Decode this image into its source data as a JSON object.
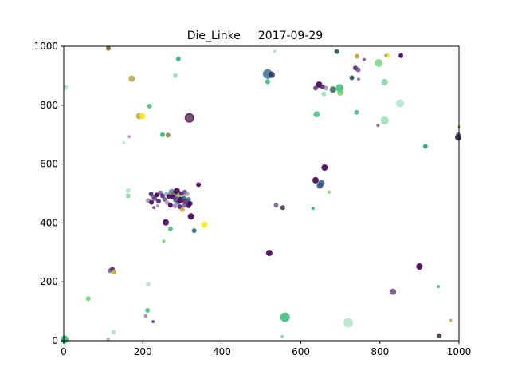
{
  "chart_data": {
    "type": "scatter",
    "title": "Die_Linke",
    "date": "2017-09-29",
    "xlabel": "",
    "ylabel": "",
    "xlim": [
      0,
      1000
    ],
    "ylim": [
      0,
      1000
    ],
    "x_ticks": [
      0,
      200,
      400,
      600,
      800,
      1000
    ],
    "y_ticks": [
      0,
      200,
      400,
      600,
      800,
      1000
    ],
    "grid": false,
    "colormap": "viridis",
    "points": [
      {
        "x": 113,
        "y": 993,
        "s": 3,
        "c": "#7a6a2a",
        "a": 0.9
      },
      {
        "x": 290,
        "y": 957,
        "s": 3,
        "c": "#2db27d",
        "a": 0.9
      },
      {
        "x": 533,
        "y": 983,
        "s": 2,
        "c": "#9fd9c0",
        "a": 0.8
      },
      {
        "x": 172,
        "y": 890,
        "s": 4,
        "c": "#a8a832",
        "a": 0.8
      },
      {
        "x": 282,
        "y": 900,
        "s": 3,
        "c": "#73d0a5",
        "a": 0.7
      },
      {
        "x": 5,
        "y": 860,
        "s": 3,
        "c": "#9fd9c0",
        "a": 0.7
      },
      {
        "x": 217,
        "y": 797,
        "s": 3,
        "c": "#35b779",
        "a": 0.8
      },
      {
        "x": 191,
        "y": 763,
        "s": 4,
        "c": "#a8a832",
        "a": 0.8
      },
      {
        "x": 199,
        "y": 763,
        "s": 4,
        "c": "#fde725",
        "a": 0.9
      },
      {
        "x": 318,
        "y": 757,
        "s": 6,
        "c": "#440154",
        "a": 0.8
      },
      {
        "x": 318,
        "y": 757,
        "s": 4,
        "c": "#7b6b6b",
        "a": 0.7
      },
      {
        "x": 250,
        "y": 700,
        "s": 3,
        "c": "#35b779",
        "a": 0.9
      },
      {
        "x": 264,
        "y": 698,
        "s": 3,
        "c": "#6a7a2a",
        "a": 0.8
      },
      {
        "x": 166,
        "y": 693,
        "s": 2,
        "c": "#9b7bae",
        "a": 0.7
      },
      {
        "x": 152,
        "y": 673,
        "s": 2,
        "c": "#9fd9c0",
        "a": 0.7
      },
      {
        "x": 516,
        "y": 906,
        "s": 6,
        "c": "#31688e",
        "a": 0.8
      },
      {
        "x": 526,
        "y": 903,
        "s": 4,
        "c": "#1f2a5a",
        "a": 0.8
      },
      {
        "x": 516,
        "y": 880,
        "s": 3,
        "c": "#35b779",
        "a": 0.9
      },
      {
        "x": 691,
        "y": 982,
        "s": 3,
        "c": "#2a5a4a",
        "a": 0.9
      },
      {
        "x": 742,
        "y": 966,
        "s": 3,
        "c": "#c29a2a",
        "a": 0.8
      },
      {
        "x": 820,
        "y": 968,
        "s": 3,
        "c": "#fde725",
        "a": 0.9
      },
      {
        "x": 815,
        "y": 968,
        "s": 2,
        "c": "#8a8a8a",
        "a": 0.8
      },
      {
        "x": 853,
        "y": 968,
        "s": 3,
        "c": "#440154",
        "a": 0.9
      },
      {
        "x": 760,
        "y": 955,
        "s": 2,
        "c": "#6a4a8a",
        "a": 0.8
      },
      {
        "x": 797,
        "y": 943,
        "s": 5,
        "c": "#5ec962",
        "a": 0.7
      },
      {
        "x": 738,
        "y": 926,
        "s": 3,
        "c": "#46327e",
        "a": 0.9
      },
      {
        "x": 745,
        "y": 920,
        "s": 3,
        "c": "#6a3a7a",
        "a": 0.8
      },
      {
        "x": 729,
        "y": 893,
        "s": 3,
        "c": "#2a4a5a",
        "a": 0.9
      },
      {
        "x": 746,
        "y": 888,
        "s": 2,
        "c": "#7a5a9a",
        "a": 0.8
      },
      {
        "x": 812,
        "y": 878,
        "s": 4,
        "c": "#73d0a5",
        "a": 0.8
      },
      {
        "x": 646,
        "y": 870,
        "s": 4,
        "c": "#440154",
        "a": 0.9
      },
      {
        "x": 655,
        "y": 862,
        "s": 3,
        "c": "#482878",
        "a": 0.9
      },
      {
        "x": 637,
        "y": 858,
        "s": 3,
        "c": "#5a2a6a",
        "a": 0.8
      },
      {
        "x": 663,
        "y": 858,
        "s": 3,
        "c": "#8a7aa0",
        "a": 0.7
      },
      {
        "x": 681,
        "y": 853,
        "s": 4,
        "c": "#2a5a4a",
        "a": 0.8
      },
      {
        "x": 698,
        "y": 858,
        "s": 5,
        "c": "#35b779",
        "a": 0.8
      },
      {
        "x": 700,
        "y": 843,
        "s": 4,
        "c": "#5ec962",
        "a": 0.7
      },
      {
        "x": 658,
        "y": 838,
        "s": 3,
        "c": "#73d0a5",
        "a": 0.7
      },
      {
        "x": 851,
        "y": 806,
        "s": 5,
        "c": "#9fd9c0",
        "a": 0.7
      },
      {
        "x": 741,
        "y": 776,
        "s": 3,
        "c": "#35b779",
        "a": 0.8
      },
      {
        "x": 640,
        "y": 769,
        "s": 4,
        "c": "#35b779",
        "a": 0.8
      },
      {
        "x": 812,
        "y": 748,
        "s": 5,
        "c": "#7fd4a0",
        "a": 0.7
      },
      {
        "x": 795,
        "y": 731,
        "s": 2,
        "c": "#7a5a9a",
        "a": 0.8
      },
      {
        "x": 1000,
        "y": 726,
        "s": 2,
        "c": "#a8a832",
        "a": 0.8
      },
      {
        "x": 998,
        "y": 700,
        "s": 3,
        "c": "#6a4a8a",
        "a": 0.8
      },
      {
        "x": 998,
        "y": 690,
        "s": 4,
        "c": "#2a2a3a",
        "a": 0.9
      },
      {
        "x": 915,
        "y": 660,
        "s": 3,
        "c": "#20a486",
        "a": 0.9
      },
      {
        "x": 660,
        "y": 588,
        "s": 4,
        "c": "#440154",
        "a": 0.9
      },
      {
        "x": 637,
        "y": 545,
        "s": 4,
        "c": "#440154",
        "a": 0.9
      },
      {
        "x": 652,
        "y": 535,
        "s": 4,
        "c": "#31688e",
        "a": 0.9
      },
      {
        "x": 648,
        "y": 527,
        "s": 4,
        "c": "#3b528b",
        "a": 0.9
      },
      {
        "x": 671,
        "y": 505,
        "s": 2,
        "c": "#5ec962",
        "a": 0.8
      },
      {
        "x": 631,
        "y": 449,
        "s": 2,
        "c": "#35b779",
        "a": 0.9
      },
      {
        "x": 341,
        "y": 530,
        "s": 3,
        "c": "#440154",
        "a": 0.9
      },
      {
        "x": 163,
        "y": 510,
        "s": 3,
        "c": "#9fd9c0",
        "a": 0.7
      },
      {
        "x": 163,
        "y": 492,
        "s": 3,
        "c": "#73d0a5",
        "a": 0.8
      },
      {
        "x": 221,
        "y": 498,
        "s": 3,
        "c": "#482878",
        "a": 0.9
      },
      {
        "x": 228,
        "y": 488,
        "s": 3,
        "c": "#5a3a7a",
        "a": 0.8
      },
      {
        "x": 236,
        "y": 495,
        "s": 3,
        "c": "#440154",
        "a": 0.9
      },
      {
        "x": 245,
        "y": 502,
        "s": 3,
        "c": "#6a4a8a",
        "a": 0.8
      },
      {
        "x": 250,
        "y": 492,
        "s": 3,
        "c": "#46327e",
        "a": 0.9
      },
      {
        "x": 214,
        "y": 476,
        "s": 3,
        "c": "#7a6a9a",
        "a": 0.7
      },
      {
        "x": 222,
        "y": 470,
        "s": 3,
        "c": "#440154",
        "a": 0.9
      },
      {
        "x": 230,
        "y": 482,
        "s": 3,
        "c": "#6a3a7a",
        "a": 0.8
      },
      {
        "x": 240,
        "y": 474,
        "s": 3,
        "c": "#482878",
        "a": 0.9
      },
      {
        "x": 255,
        "y": 480,
        "s": 3,
        "c": "#5a4a8a",
        "a": 0.8
      },
      {
        "x": 260,
        "y": 498,
        "s": 3,
        "c": "#7a8aa0",
        "a": 0.7
      },
      {
        "x": 266,
        "y": 490,
        "s": 3,
        "c": "#440154",
        "a": 0.9
      },
      {
        "x": 273,
        "y": 505,
        "s": 4,
        "c": "#31688e",
        "a": 0.7
      },
      {
        "x": 280,
        "y": 500,
        "s": 4,
        "c": "#7a6a4a",
        "a": 0.8
      },
      {
        "x": 286,
        "y": 508,
        "s": 4,
        "c": "#440154",
        "a": 0.9
      },
      {
        "x": 292,
        "y": 495,
        "s": 3,
        "c": "#a8a832",
        "a": 0.8
      },
      {
        "x": 298,
        "y": 500,
        "s": 3,
        "c": "#482878",
        "a": 0.9
      },
      {
        "x": 306,
        "y": 505,
        "s": 3,
        "c": "#5a3a7a",
        "a": 0.8
      },
      {
        "x": 312,
        "y": 498,
        "s": 3,
        "c": "#8a8aa0",
        "a": 0.7
      },
      {
        "x": 276,
        "y": 488,
        "s": 3,
        "c": "#440154",
        "a": 0.9
      },
      {
        "x": 284,
        "y": 480,
        "s": 4,
        "c": "#3b528b",
        "a": 0.9
      },
      {
        "x": 290,
        "y": 470,
        "s": 3,
        "c": "#6a4a8a",
        "a": 0.8
      },
      {
        "x": 296,
        "y": 478,
        "s": 4,
        "c": "#440154",
        "a": 0.9
      },
      {
        "x": 304,
        "y": 484,
        "s": 3,
        "c": "#2a5a6a",
        "a": 0.8
      },
      {
        "x": 310,
        "y": 472,
        "s": 4,
        "c": "#5a2a6a",
        "a": 0.9
      },
      {
        "x": 316,
        "y": 480,
        "s": 3,
        "c": "#31688e",
        "a": 0.8
      },
      {
        "x": 320,
        "y": 466,
        "s": 3,
        "c": "#440154",
        "a": 0.9
      },
      {
        "x": 262,
        "y": 468,
        "s": 3,
        "c": "#9b7bae",
        "a": 0.7
      },
      {
        "x": 270,
        "y": 460,
        "s": 3,
        "c": "#440154",
        "a": 0.9
      },
      {
        "x": 282,
        "y": 458,
        "s": 3,
        "c": "#7a6a9a",
        "a": 0.7
      },
      {
        "x": 294,
        "y": 455,
        "s": 3,
        "c": "#482878",
        "a": 0.9
      },
      {
        "x": 305,
        "y": 460,
        "s": 3,
        "c": "#6a4a8a",
        "a": 0.8
      },
      {
        "x": 316,
        "y": 458,
        "s": 3,
        "c": "#440154",
        "a": 0.9
      },
      {
        "x": 238,
        "y": 458,
        "s": 2,
        "c": "#8a7aa0",
        "a": 0.7
      },
      {
        "x": 228,
        "y": 452,
        "s": 2,
        "c": "#6a3a7a",
        "a": 0.8
      },
      {
        "x": 300,
        "y": 445,
        "s": 3,
        "c": "#c29a2a",
        "a": 0.8
      },
      {
        "x": 322,
        "y": 422,
        "s": 4,
        "c": "#440154",
        "a": 0.9
      },
      {
        "x": 258,
        "y": 402,
        "s": 4,
        "c": "#440154",
        "a": 0.9
      },
      {
        "x": 356,
        "y": 394,
        "s": 4,
        "c": "#fde725",
        "a": 0.9
      },
      {
        "x": 270,
        "y": 380,
        "s": 3,
        "c": "#35b779",
        "a": 0.8
      },
      {
        "x": 330,
        "y": 374,
        "s": 3,
        "c": "#31688e",
        "a": 0.9
      },
      {
        "x": 253,
        "y": 338,
        "s": 2,
        "c": "#5ec962",
        "a": 0.8
      },
      {
        "x": 537,
        "y": 460,
        "s": 3,
        "c": "#6a4a8a",
        "a": 0.8
      },
      {
        "x": 554,
        "y": 452,
        "s": 3,
        "c": "#3a3a3a",
        "a": 0.9
      },
      {
        "x": 520,
        "y": 298,
        "s": 4,
        "c": "#440154",
        "a": 0.9
      },
      {
        "x": 117,
        "y": 238,
        "s": 3,
        "c": "#6a4a8a",
        "a": 0.8
      },
      {
        "x": 123,
        "y": 243,
        "s": 3,
        "c": "#482878",
        "a": 0.9
      },
      {
        "x": 127,
        "y": 233,
        "s": 3,
        "c": "#c29a2a",
        "a": 0.8
      },
      {
        "x": 62,
        "y": 143,
        "s": 3,
        "c": "#5ec962",
        "a": 0.8
      },
      {
        "x": 214,
        "y": 192,
        "s": 3,
        "c": "#9fd9c0",
        "a": 0.6
      },
      {
        "x": 212,
        "y": 103,
        "s": 3,
        "c": "#35b779",
        "a": 0.8
      },
      {
        "x": 207,
        "y": 84,
        "s": 2,
        "c": "#7a6a9a",
        "a": 0.7
      },
      {
        "x": 226,
        "y": 65,
        "s": 2,
        "c": "#482878",
        "a": 0.8
      },
      {
        "x": 126,
        "y": 29,
        "s": 3,
        "c": "#9fd9c0",
        "a": 0.7
      },
      {
        "x": 112,
        "y": 5,
        "s": 2,
        "c": "#8a8a8a",
        "a": 0.7
      },
      {
        "x": 2,
        "y": 4,
        "s": 5,
        "c": "#35b779",
        "a": 0.9
      },
      {
        "x": 900,
        "y": 252,
        "s": 4,
        "c": "#440154",
        "a": 0.9
      },
      {
        "x": 833,
        "y": 166,
        "s": 4,
        "c": "#6a3a7a",
        "a": 0.8
      },
      {
        "x": 948,
        "y": 184,
        "s": 2,
        "c": "#35b779",
        "a": 0.8
      },
      {
        "x": 560,
        "y": 80,
        "s": 6,
        "c": "#35b779",
        "a": 0.85
      },
      {
        "x": 720,
        "y": 61,
        "s": 6,
        "c": "#9fd9c0",
        "a": 0.7
      },
      {
        "x": 553,
        "y": 14,
        "s": 2,
        "c": "#73d0a5",
        "a": 0.8
      },
      {
        "x": 950,
        "y": 17,
        "s": 3,
        "c": "#4a3a3a",
        "a": 0.9
      },
      {
        "x": 979,
        "y": 69,
        "s": 2,
        "c": "#a8a832",
        "a": 0.8
      }
    ]
  }
}
